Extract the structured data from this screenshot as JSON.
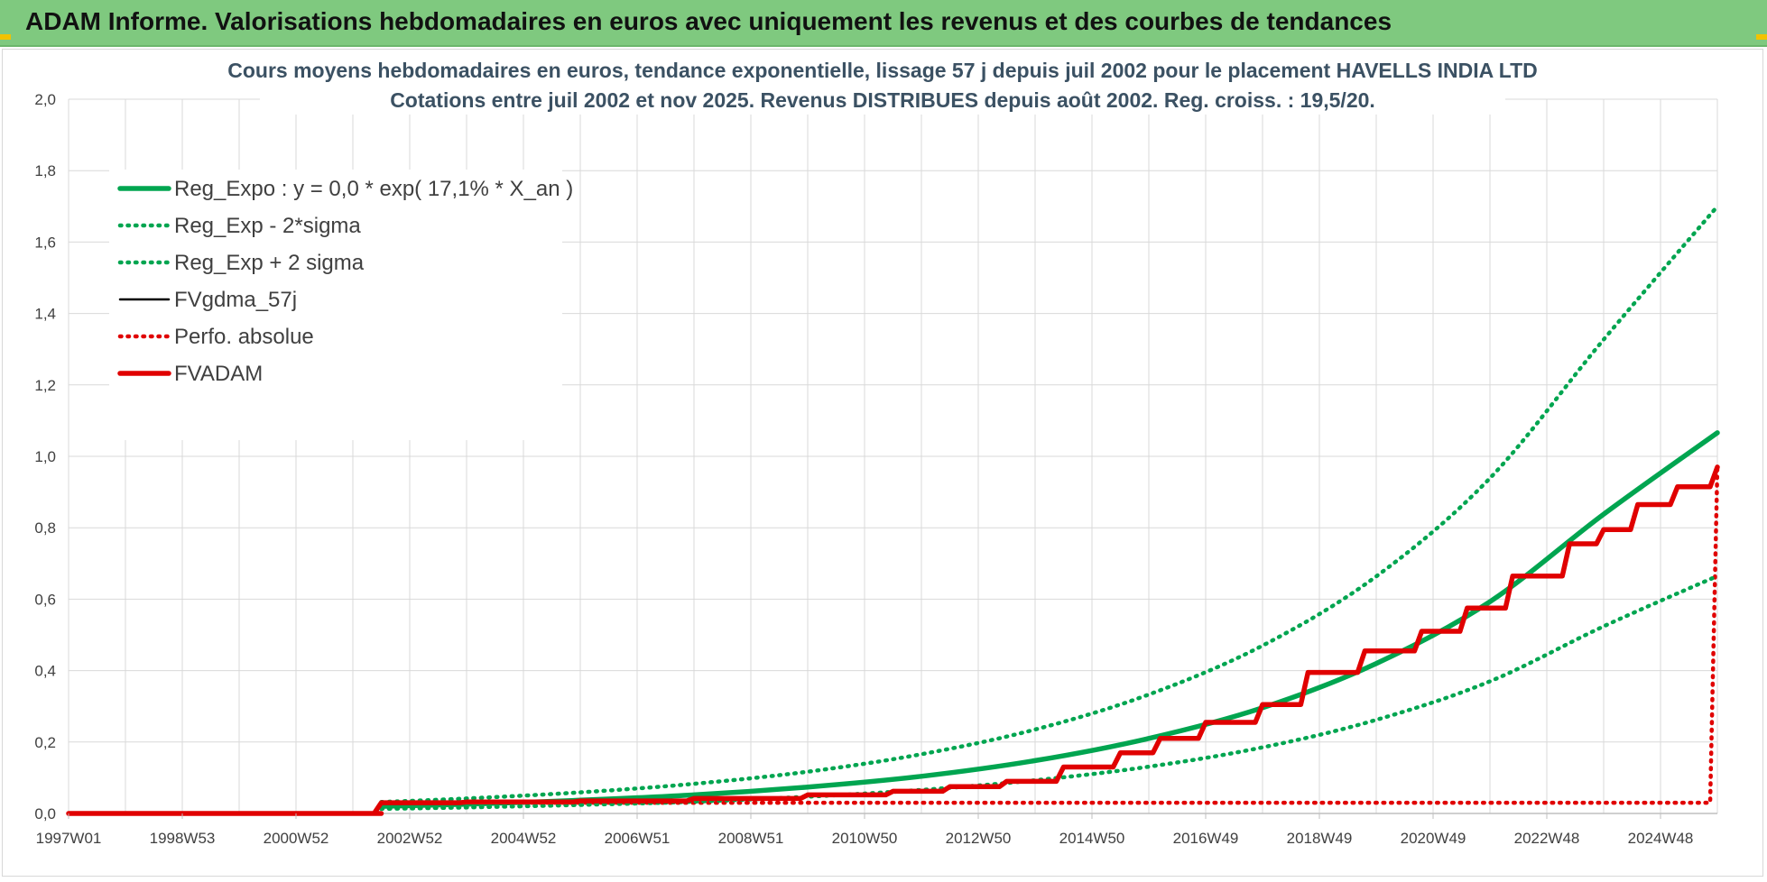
{
  "page": {
    "header_title": "ADAM Informe. Valorisations hebdomadaires en euros avec uniquement les revenus et des courbes de tendances",
    "colors": {
      "header_bg": "#7fc97f",
      "green": "#00a550",
      "red": "#e00000",
      "black": "#000000",
      "grid": "#d9d9d9"
    }
  },
  "chart_data": {
    "type": "line",
    "title_line1": "Cours moyens hebdomadaires en euros, tendance exponentielle, lissage 57 j depuis juil 2002 pour le placement HAVELLS INDIA LTD",
    "title_line2": "Cotations entre juil 2002 et nov 2025. Revenus DISTRIBUES depuis août 2002. Reg. croiss. : 19,5/20.",
    "xlabel": "",
    "ylabel": "",
    "x_range": [
      1997.0,
      2026.0
    ],
    "ylim": [
      0,
      2.0
    ],
    "y_ticks": [
      "0,0",
      "0,2",
      "0,4",
      "0,6",
      "0,8",
      "1,0",
      "1,2",
      "1,4",
      "1,6",
      "1,8",
      "2,0"
    ],
    "x_ticks": [
      {
        "label": "1997W01",
        "x": 1997.0
      },
      {
        "label": "1998W53",
        "x": 1999.0
      },
      {
        "label": "2000W52",
        "x": 2001.0
      },
      {
        "label": "2002W52",
        "x": 2003.0
      },
      {
        "label": "2004W52",
        "x": 2005.0
      },
      {
        "label": "2006W51",
        "x": 2007.0
      },
      {
        "label": "2008W51",
        "x": 2009.0
      },
      {
        "label": "2010W50",
        "x": 2011.0
      },
      {
        "label": "2012W50",
        "x": 2013.0
      },
      {
        "label": "2014W50",
        "x": 2015.0
      },
      {
        "label": "2016W49",
        "x": 2017.0
      },
      {
        "label": "2018W49",
        "x": 2019.0
      },
      {
        "label": "2020W49",
        "x": 2021.0
      },
      {
        "label": "2022W48",
        "x": 2023.0
      },
      {
        "label": "2024W48",
        "x": 2025.0
      }
    ],
    "grid": true,
    "legend_position": "top-left",
    "series": [
      {
        "name": "Reg_Expo : y = 0,0 * exp( 17,1% *  X_an )",
        "style": "solid-thick",
        "color": "#00a550",
        "points": [
          [
            2002.5,
            0.02
          ],
          [
            2004,
            0.026
          ],
          [
            2006,
            0.037
          ],
          [
            2008,
            0.052
          ],
          [
            2010,
            0.074
          ],
          [
            2012,
            0.104
          ],
          [
            2014,
            0.148
          ],
          [
            2016,
            0.21
          ],
          [
            2018,
            0.296
          ],
          [
            2020,
            0.42
          ],
          [
            2022,
            0.593
          ],
          [
            2024,
            0.838
          ],
          [
            2026,
            1.066
          ]
        ]
      },
      {
        "name": "Reg_Exp - 2*sigma",
        "style": "dotted",
        "color": "#00a550",
        "points": [
          [
            2002.5,
            0.013
          ],
          [
            2004,
            0.017
          ],
          [
            2006,
            0.024
          ],
          [
            2008,
            0.033
          ],
          [
            2010,
            0.047
          ],
          [
            2012,
            0.066
          ],
          [
            2014,
            0.093
          ],
          [
            2016,
            0.131
          ],
          [
            2018,
            0.185
          ],
          [
            2020,
            0.262
          ],
          [
            2022,
            0.37
          ],
          [
            2024,
            0.524
          ],
          [
            2026,
            0.665
          ]
        ]
      },
      {
        "name": "Reg_Exp + 2 sigma",
        "style": "dotted",
        "color": "#00a550",
        "points": [
          [
            2002.5,
            0.032
          ],
          [
            2004,
            0.042
          ],
          [
            2006,
            0.059
          ],
          [
            2008,
            0.083
          ],
          [
            2010,
            0.117
          ],
          [
            2012,
            0.166
          ],
          [
            2014,
            0.235
          ],
          [
            2016,
            0.333
          ],
          [
            2018,
            0.47
          ],
          [
            2020,
            0.664
          ],
          [
            2022,
            0.939
          ],
          [
            2024,
            1.327
          ],
          [
            2026,
            1.7
          ]
        ]
      },
      {
        "name": "FVgdma_57j",
        "style": "solid",
        "color": "#000000",
        "points": [
          [
            1997,
            0
          ],
          [
            2002.5,
            0
          ],
          [
            2002.5,
            0.028
          ],
          [
            2004,
            0.03
          ],
          [
            2006,
            0.035
          ],
          [
            2008,
            0.042
          ],
          [
            2010,
            0.052
          ],
          [
            2011.5,
            0.062
          ],
          [
            2012.5,
            0.075
          ],
          [
            2013.5,
            0.09
          ],
          [
            2014.5,
            0.13
          ],
          [
            2015.5,
            0.17
          ],
          [
            2016.2,
            0.21
          ],
          [
            2017,
            0.255
          ],
          [
            2018,
            0.305
          ],
          [
            2018.8,
            0.395
          ],
          [
            2019.8,
            0.455
          ],
          [
            2020.8,
            0.51
          ],
          [
            2021.6,
            0.575
          ],
          [
            2022.4,
            0.665
          ],
          [
            2023.4,
            0.755
          ],
          [
            2024,
            0.795
          ],
          [
            2024.6,
            0.865
          ],
          [
            2025.3,
            0.915
          ],
          [
            2026,
            0.97
          ]
        ]
      },
      {
        "name": "Perfo. absolue",
        "style": "dotted",
        "color": "#e00000",
        "points": [
          [
            1997,
            0
          ],
          [
            2002.5,
            0
          ],
          [
            2002.5,
            0.03
          ],
          [
            2026,
            0.97
          ]
        ]
      },
      {
        "name": "FVADAM",
        "style": "solid-thick",
        "color": "#e00000",
        "points": [
          [
            1997,
            0
          ],
          [
            2002.5,
            0
          ],
          [
            2002.5,
            0.03
          ],
          [
            2004,
            0.032
          ],
          [
            2006,
            0.035
          ],
          [
            2008,
            0.042
          ],
          [
            2010,
            0.052
          ],
          [
            2011.5,
            0.062
          ],
          [
            2012.5,
            0.075
          ],
          [
            2013.5,
            0.09
          ],
          [
            2014.5,
            0.13
          ],
          [
            2015.5,
            0.17
          ],
          [
            2016.2,
            0.21
          ],
          [
            2017,
            0.255
          ],
          [
            2018,
            0.305
          ],
          [
            2018.8,
            0.395
          ],
          [
            2019.8,
            0.455
          ],
          [
            2020.8,
            0.51
          ],
          [
            2021.6,
            0.575
          ],
          [
            2022.4,
            0.665
          ],
          [
            2023.4,
            0.755
          ],
          [
            2024,
            0.795
          ],
          [
            2024.6,
            0.865
          ],
          [
            2025.3,
            0.915
          ],
          [
            2026,
            0.97
          ]
        ]
      }
    ]
  }
}
